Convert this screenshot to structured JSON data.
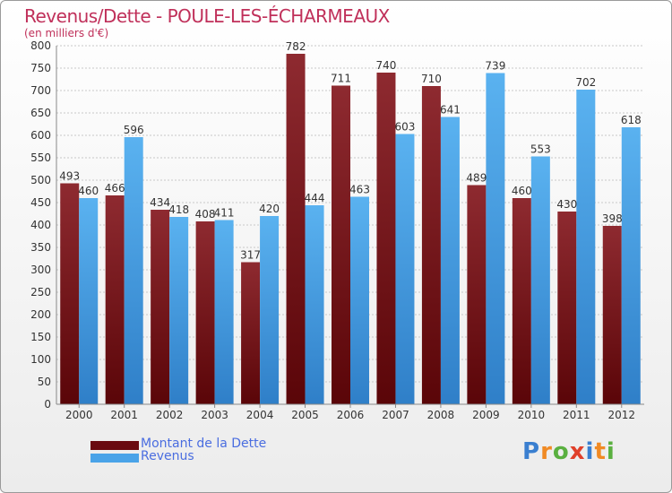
{
  "title": "Revenus/Dette - POULE-LES-ÉCHARMEAUX",
  "subtitle": "(en milliers d'€)",
  "legend": {
    "dette_label": "Montant de la Dette",
    "revenus_label": "Revenus"
  },
  "logo_text": "Proxiti",
  "colors": {
    "dette": "#8b1a1f",
    "revenus": "#4aa3e8",
    "title": "#c0305a",
    "legend_text": "#4a6de0"
  },
  "chart_data": {
    "type": "bar",
    "categories": [
      "2000",
      "2001",
      "2002",
      "2003",
      "2004",
      "2005",
      "2006",
      "2007",
      "2008",
      "2009",
      "2010",
      "2011",
      "2012"
    ],
    "series": [
      {
        "name": "Montant de la Dette",
        "values": [
          493,
          466,
          434,
          408,
          317,
          782,
          711,
          740,
          710,
          489,
          460,
          430,
          398
        ]
      },
      {
        "name": "Revenus",
        "values": [
          460,
          596,
          418,
          411,
          420,
          444,
          463,
          603,
          641,
          739,
          553,
          702,
          618
        ]
      }
    ],
    "ylim": [
      0,
      800
    ],
    "yticks": [
      0,
      50,
      100,
      150,
      200,
      250,
      300,
      350,
      400,
      450,
      500,
      550,
      600,
      650,
      700,
      750,
      800
    ],
    "grid": true,
    "legend_position": "bottom-left"
  }
}
